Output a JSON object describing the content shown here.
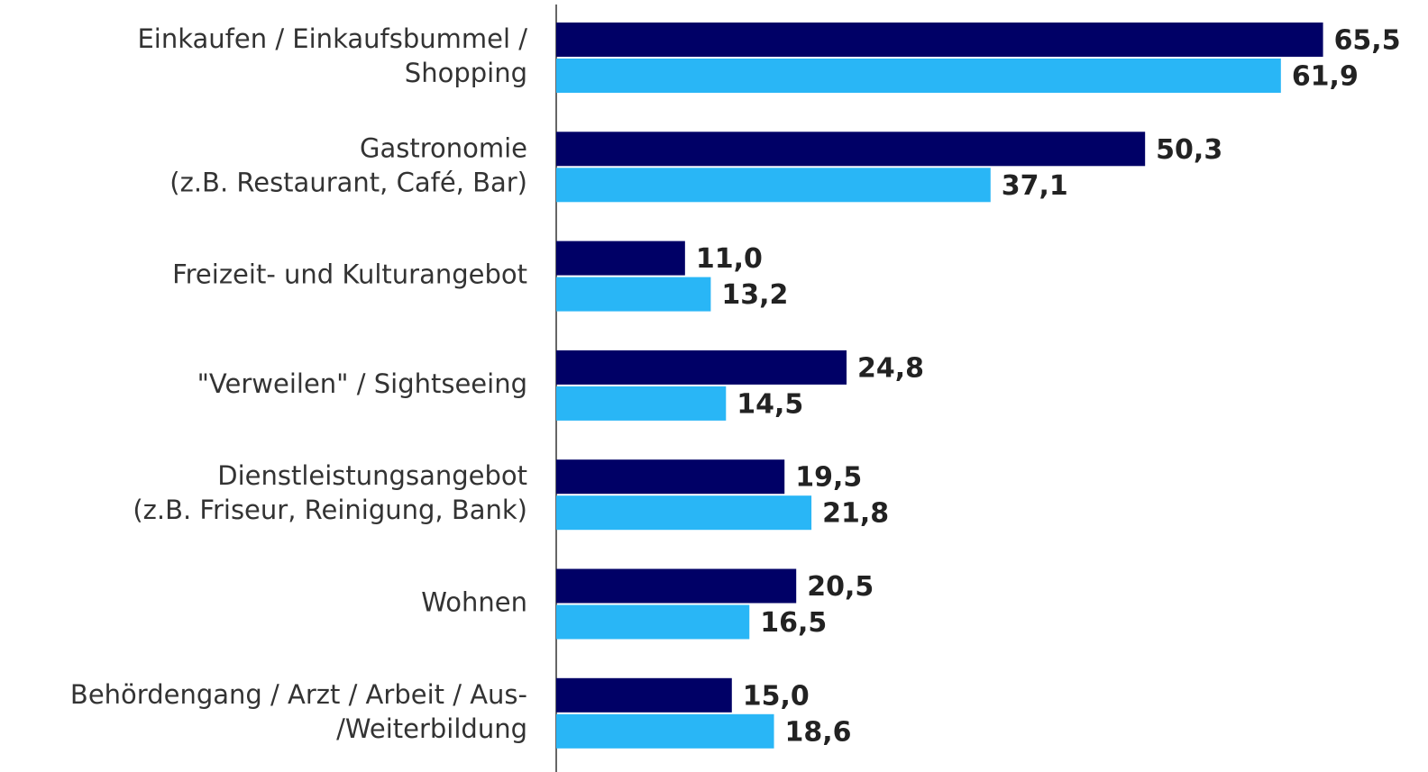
{
  "chart_data": {
    "type": "bar",
    "orientation": "horizontal",
    "categories": [
      [
        "Einkaufen / Einkaufsbummel /",
        "Shopping"
      ],
      [
        "Gastronomie",
        "(z.B. Restaurant, Café, Bar)"
      ],
      [
        "Freizeit- und Kulturangebot"
      ],
      [
        "\"Verweilen\" / Sightseeing"
      ],
      [
        "Dienstleistungsangebot",
        "(z.B. Friseur, Reinigung, Bank)"
      ],
      [
        "Wohnen"
      ],
      [
        "Behördengang / Arzt / Arbeit / Aus-",
        "/Weiterbildung"
      ]
    ],
    "series": [
      {
        "color": "#000066",
        "values": [
          65.5,
          50.3,
          11.0,
          24.8,
          19.5,
          20.5,
          15.0
        ],
        "value_labels": [
          "65,5",
          "50,3",
          "11,0",
          "24,8",
          "19,5",
          "20,5",
          "15,0"
        ]
      },
      {
        "color": "#29b6f6",
        "values": [
          61.9,
          37.1,
          13.2,
          14.5,
          21.8,
          16.5,
          18.6
        ],
        "value_labels": [
          "61,9",
          "37,1",
          "13,2",
          "14,5",
          "21,8",
          "16,5",
          "18,6"
        ]
      }
    ],
    "xlim": [
      0,
      70
    ]
  }
}
